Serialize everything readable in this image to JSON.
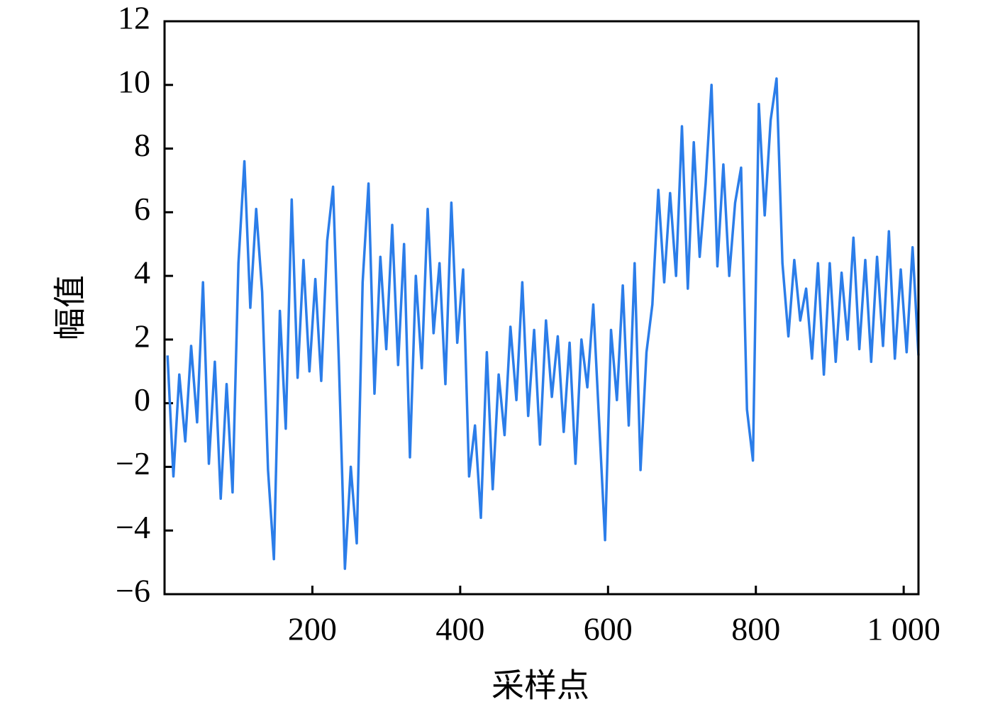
{
  "chart_data": {
    "type": "line",
    "xlabel": "采样点",
    "ylabel": "幅值",
    "x": [
      4,
      12,
      20,
      28,
      36,
      44,
      52,
      60,
      68,
      76,
      84,
      92,
      100,
      108,
      116,
      124,
      132,
      140,
      148,
      156,
      164,
      172,
      180,
      188,
      196,
      204,
      212,
      220,
      228,
      236,
      244,
      252,
      260,
      268,
      276,
      284,
      292,
      300,
      308,
      316,
      324,
      332,
      340,
      348,
      356,
      364,
      372,
      380,
      388,
      396,
      404,
      412,
      420,
      428,
      436,
      444,
      452,
      460,
      468,
      476,
      484,
      492,
      500,
      508,
      516,
      524,
      532,
      540,
      548,
      556,
      564,
      572,
      580,
      588,
      596,
      604,
      612,
      620,
      628,
      636,
      644,
      652,
      660,
      668,
      676,
      684,
      692,
      700,
      708,
      716,
      724,
      732,
      740,
      748,
      756,
      764,
      772,
      780,
      788,
      796,
      804,
      812,
      820,
      828,
      836,
      844,
      852,
      860,
      868,
      876,
      884,
      892,
      900,
      908,
      916,
      924,
      932,
      940,
      948,
      956,
      964,
      972,
      980,
      988,
      996,
      1004,
      1012,
      1020
    ],
    "series": [
      {
        "color": "#2b7de9",
        "values": [
          1.5,
          -2.3,
          0.9,
          -1.2,
          1.8,
          -0.6,
          3.8,
          -1.9,
          1.3,
          -3.0,
          0.6,
          -2.8,
          4.4,
          7.6,
          3.0,
          6.1,
          3.5,
          -2.1,
          -4.9,
          2.9,
          -0.8,
          6.4,
          0.8,
          4.5,
          1.0,
          3.9,
          0.7,
          5.1,
          6.8,
          1.2,
          -5.2,
          -2.0,
          -4.4,
          3.8,
          6.9,
          0.3,
          4.6,
          1.7,
          5.6,
          1.2,
          5.0,
          -1.7,
          4.0,
          1.1,
          6.1,
          2.2,
          4.4,
          0.6,
          6.3,
          1.9,
          4.2,
          -2.3,
          -0.7,
          -3.6,
          1.6,
          -2.7,
          0.9,
          -1.0,
          2.4,
          0.1,
          3.8,
          -0.4,
          2.3,
          -1.3,
          2.6,
          0.2,
          2.1,
          -0.9,
          1.9,
          -1.9,
          2.0,
          0.5,
          3.1,
          -0.6,
          -4.3,
          2.3,
          0.1,
          3.7,
          -0.7,
          4.4,
          -2.1,
          1.6,
          3.1,
          6.7,
          3.8,
          6.6,
          4.0,
          8.7,
          3.6,
          8.2,
          4.6,
          6.9,
          10.0,
          4.3,
          7.5,
          4.0,
          6.3,
          7.4,
          -0.2,
          -1.8,
          9.4,
          5.9,
          8.9,
          10.2,
          4.4,
          2.1,
          4.5,
          2.6,
          3.6,
          1.4,
          4.4,
          0.9,
          4.4,
          1.3,
          4.1,
          2.0,
          5.2,
          1.7,
          4.5,
          1.3,
          4.6,
          1.8,
          5.4,
          1.4,
          4.2,
          1.6,
          4.9,
          1.5
        ]
      }
    ],
    "xlim": [
      0,
      1020
    ],
    "ylim": [
      -6,
      12
    ],
    "xticks": [
      200,
      400,
      600,
      800,
      {
        "value": 1000,
        "label": "1 000"
      }
    ],
    "yticks": [
      {
        "value": -6,
        "label": "−6"
      },
      {
        "value": -4,
        "label": "−4"
      },
      {
        "value": -2,
        "label": "−2"
      },
      0,
      2,
      4,
      6,
      8,
      10,
      12
    ]
  }
}
